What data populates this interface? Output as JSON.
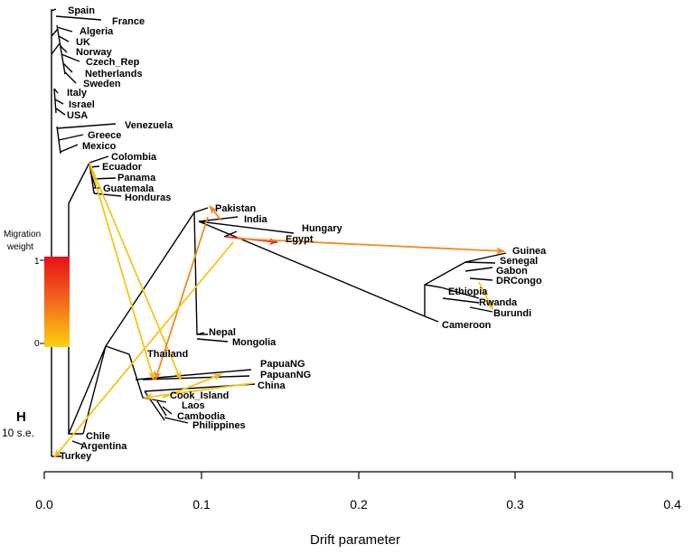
{
  "leaves": {
    "spain": "Spain",
    "france": "France",
    "algeria": "Algeria",
    "uk": "UK",
    "norway": "Norway",
    "czech": "Czech_Rep",
    "netherlands": "Netherlands",
    "sweden": "Sweden",
    "italy": "Italy",
    "israel": "Israel",
    "usa": "USA",
    "venezuela": "Venezuela",
    "greece": "Greece",
    "mexico": "Mexico",
    "colombia": "Colombia",
    "ecuador": "Ecuador",
    "panama": "Panama",
    "guatemala": "Guatemala",
    "honduras": "Honduras",
    "pakistan": "Pakistan",
    "india": "India",
    "hungary": "Hungary",
    "egypt": "Egypt",
    "nepal": "Nepal",
    "mongolia": "Mongolia",
    "thailand": "Thailand",
    "papuang1": "PapuaNG",
    "papuang2": "PapuanNG",
    "china": "China",
    "cook": "Cook_Island",
    "laos": "Laos",
    "cambodia": "Cambodia",
    "philippines": "Philippines",
    "chile": "Chile",
    "argentina": "Argentina",
    "turkey": "Turkey",
    "guinea": "Guinea",
    "senegal": "Senegal",
    "gabon": "Gabon",
    "drcongo": "DRCongo",
    "ethiopia": "Ethiopia",
    "rwanda": "Rwanda",
    "burundi": "Burundi",
    "cameroon": "Cameroon"
  },
  "legend": {
    "title_line1": "Migration",
    "title_line2": "weight",
    "max": "1",
    "min": "0"
  },
  "scale": {
    "letter": "H",
    "label": "10 s.e."
  },
  "axis": {
    "title": "Drift parameter",
    "ticks": [
      "0.0",
      "0.1",
      "0.2",
      "0.3",
      "0.4"
    ]
  },
  "colors": {
    "low": "#f5c518",
    "mid": "#f08a24",
    "high": "#e02020"
  }
}
